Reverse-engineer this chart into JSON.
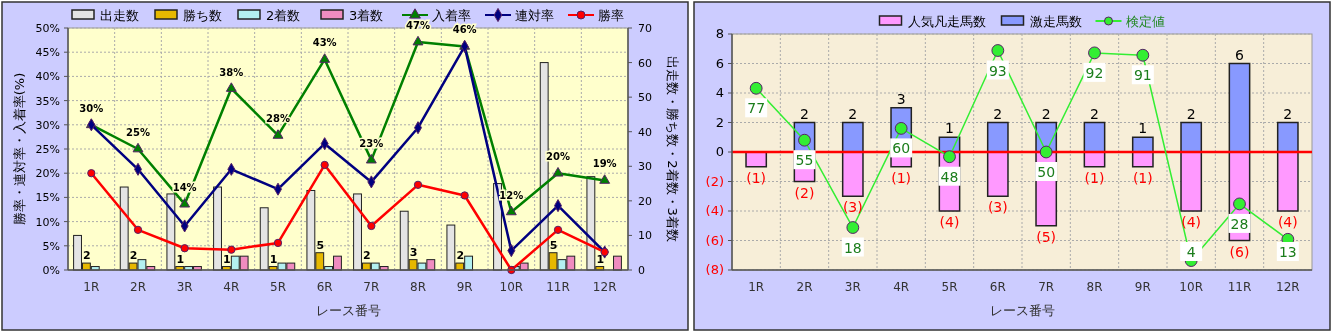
{
  "chart_data": [
    {
      "type": "bar",
      "xlabel": "レース番号",
      "ylabel": "勝率・連対率・入着率(%)",
      "y2label": "出走数・勝ち数・2着数・3着数",
      "categories": [
        "1R",
        "2R",
        "3R",
        "4R",
        "5R",
        "6R",
        "7R",
        "8R",
        "9R",
        "10R",
        "11R",
        "12R"
      ],
      "series": [
        {
          "name": "出走数",
          "color": "#e4e4e4",
          "axis": "y2",
          "values": [
            10,
            24,
            22,
            24,
            18,
            23,
            22,
            17,
            13,
            25,
            60,
            27
          ]
        },
        {
          "name": "勝ち数",
          "color": "#e6b800",
          "axis": "y2",
          "values": [
            2,
            2,
            1,
            1,
            1,
            5,
            2,
            3,
            2,
            0,
            5,
            1
          ],
          "value_labels": [
            "2",
            "2",
            "1",
            "1",
            "1",
            "5",
            "2",
            "3",
            "2",
            null,
            "5",
            "1"
          ]
        },
        {
          "name": "2着数",
          "color": "#b3f0f0",
          "axis": "y2",
          "values": [
            1,
            3,
            1,
            4,
            2,
            1,
            2,
            2,
            4,
            1,
            3,
            0
          ]
        },
        {
          "name": "3着数",
          "color": "#f08cc0",
          "axis": "y2",
          "values": [
            0,
            1,
            1,
            4,
            2,
            4,
            1,
            3,
            0,
            2,
            4,
            4
          ]
        },
        {
          "name": "入着率",
          "type": "line",
          "color": "#008000",
          "marker": "triangle",
          "values": [
            30.0,
            25.0,
            13.6,
            37.5,
            27.8,
            43.5,
            22.7,
            47.1,
            46.2,
            12.0,
            20.0,
            18.5
          ],
          "value_labels": [
            "30%",
            "25%",
            "14%",
            "38%",
            "28%",
            "43%",
            "23%",
            "47%",
            "46%",
            "12%",
            "20%",
            "19%"
          ]
        },
        {
          "name": "連対率",
          "type": "line",
          "color": "#000080",
          "marker": "diamond",
          "values": [
            30.0,
            20.8,
            9.1,
            20.8,
            16.7,
            26.1,
            18.2,
            29.4,
            46.2,
            4.0,
            13.3,
            3.7
          ]
        },
        {
          "name": "勝率",
          "type": "line",
          "color": "#ff0000",
          "marker": "circle",
          "values": [
            20.0,
            8.3,
            4.5,
            4.2,
            5.6,
            21.7,
            9.1,
            17.6,
            15.4,
            0,
            8.3,
            3.7
          ]
        }
      ],
      "ylim": [
        0,
        50
      ],
      "yticks": [
        {
          "value": 0,
          "label": "0%"
        },
        {
          "value": 5,
          "label": "5%"
        },
        {
          "value": 10,
          "label": "10%"
        },
        {
          "value": 15,
          "label": "15%"
        },
        {
          "value": 20,
          "label": "20%"
        },
        {
          "value": 25,
          "label": "25%"
        },
        {
          "value": 30,
          "label": "30%"
        },
        {
          "value": 35,
          "label": "35%"
        },
        {
          "value": 40,
          "label": "40%"
        },
        {
          "value": 45,
          "label": "45%"
        },
        {
          "value": 50,
          "label": "50%"
        }
      ],
      "y2lim": [
        0,
        70
      ],
      "y2ticks": [
        0,
        10,
        20,
        30,
        40,
        50,
        60,
        70
      ],
      "grid": true,
      "legend": "top"
    },
    {
      "type": "bar",
      "xlabel": "レース番号",
      "categories": [
        "1R",
        "2R",
        "3R",
        "4R",
        "5R",
        "6R",
        "7R",
        "8R",
        "9R",
        "10R",
        "11R",
        "12R"
      ],
      "stacked": true,
      "series": [
        {
          "name": "人気凡走馬数",
          "color": "#ff99ff",
          "values": [
            -1,
            -2,
            -3,
            -1,
            -4,
            -3,
            -5,
            -1,
            -1,
            -4,
            -6,
            -4
          ],
          "value_labels": [
            "(1)",
            "(2)",
            "(3)",
            "(1)",
            "(4)",
            "(3)",
            "(5)",
            "(1)",
            "(1)",
            "(4)",
            "(6)",
            "(4)"
          ]
        },
        {
          "name": "激走馬数",
          "color": "#8899ff",
          "values": [
            0,
            2,
            2,
            3,
            1,
            2,
            2,
            2,
            1,
            2,
            6,
            2
          ],
          "value_labels": [
            null,
            "2",
            "2",
            "3",
            "1",
            "2",
            "2",
            "2",
            "1",
            "2",
            "6",
            "2"
          ]
        },
        {
          "name": "検定値",
          "type": "line",
          "color": "#33ee33",
          "marker": "circle",
          "axis": "y2",
          "values": [
            77,
            55,
            18,
            60,
            48,
            93,
            50,
            92,
            91,
            4,
            28,
            13
          ],
          "value_labels": [
            "77",
            "55",
            "18",
            "60",
            "48",
            "93",
            "50",
            "92",
            "91",
            "4",
            "28",
            "13"
          ]
        }
      ],
      "ylim": [
        -8,
        8
      ],
      "yticks": [
        {
          "value": -8,
          "label": "(8)"
        },
        {
          "value": -6,
          "label": "(6)"
        },
        {
          "value": -4,
          "label": "(4)"
        },
        {
          "value": -2,
          "label": "(2)"
        },
        0,
        2,
        4,
        6,
        8
      ],
      "y2lim": [
        0,
        100
      ],
      "ref_lines": [
        {
          "axis": "y",
          "value": 0,
          "color": "#ff0000"
        }
      ],
      "grid": true,
      "legend": "top"
    }
  ]
}
